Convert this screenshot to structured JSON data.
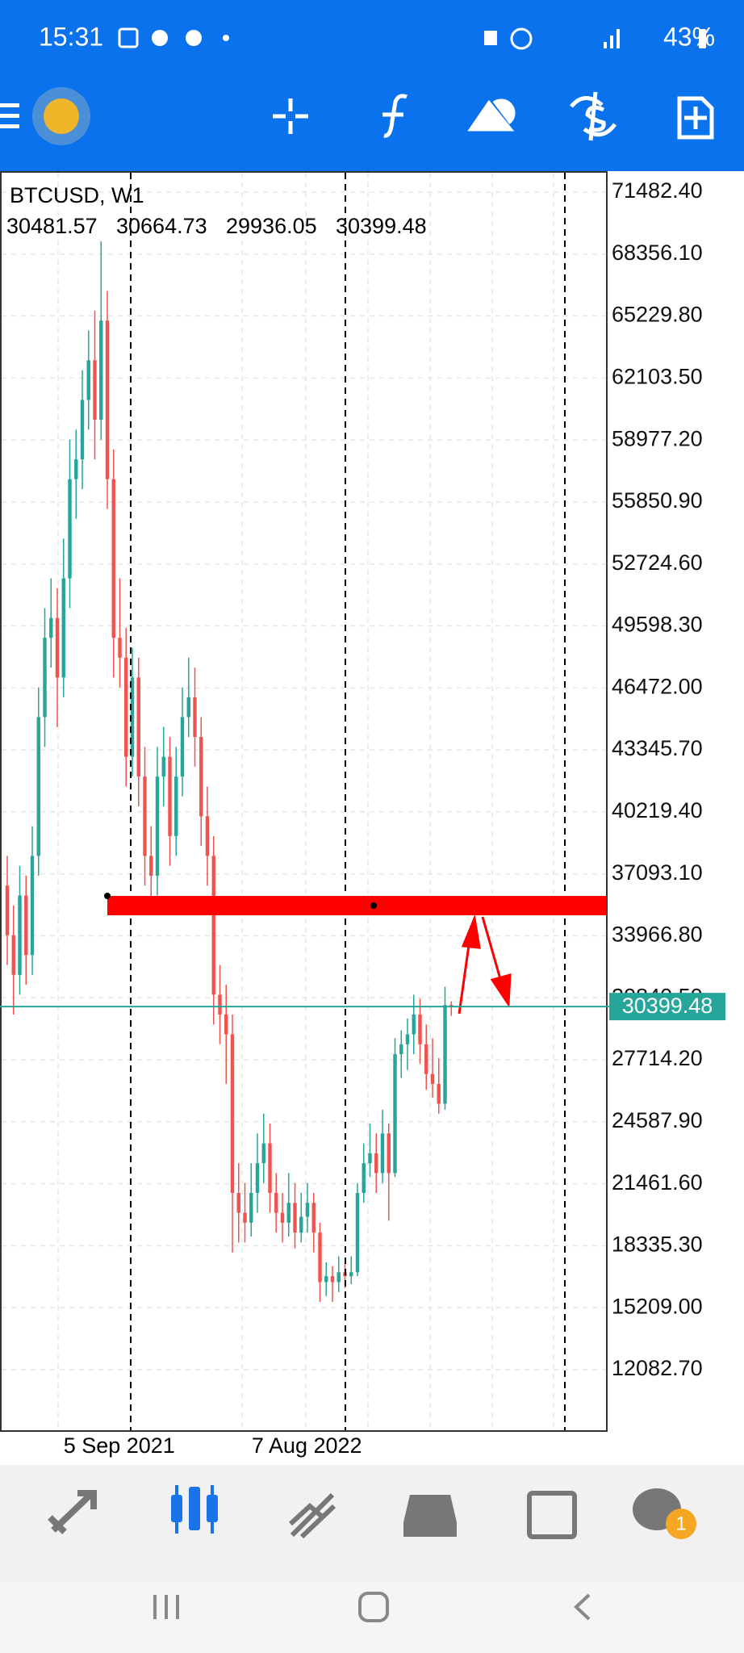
{
  "status_bar": {
    "time": "15:31",
    "battery": "43%"
  },
  "chart_data": {
    "type": "candlestick",
    "symbol": "BTCUSD, W1",
    "up_color": "#26a69a",
    "down_color": "#ef5350",
    "grid": true,
    "ylim": [
      8949,
      72540
    ],
    "yticks": [
      {
        "value": 71482.4,
        "label": "71482.40"
      },
      {
        "value": 68356.1,
        "label": "68356.10"
      },
      {
        "value": 65229.8,
        "label": "65229.80"
      },
      {
        "value": 62103.5,
        "label": "62103.50"
      },
      {
        "value": 58977.2,
        "label": "58977.20"
      },
      {
        "value": 55850.9,
        "label": "55850.90"
      },
      {
        "value": 52724.6,
        "label": "52724.60"
      },
      {
        "value": 49598.3,
        "label": "49598.30"
      },
      {
        "value": 46472,
        "label": "46472.00"
      },
      {
        "value": 43345.7,
        "label": "43345.70"
      },
      {
        "value": 40219.4,
        "label": "40219.40"
      },
      {
        "value": 37093.1,
        "label": "37093.10"
      },
      {
        "value": 33966.8,
        "label": "33966.80"
      },
      {
        "value": 30840.5,
        "label": "30840.50"
      },
      {
        "value": 27714.2,
        "label": "27714.20"
      },
      {
        "value": 24587.9,
        "label": "24587.90"
      },
      {
        "value": 21461.6,
        "label": "21461.60"
      },
      {
        "value": 18335.3,
        "label": "18335.30"
      },
      {
        "value": 15209,
        "label": "15209.00"
      },
      {
        "value": 12082.7,
        "label": "12082.70"
      }
    ],
    "categories": [
      null,
      null,
      null,
      null,
      null,
      null,
      null,
      null,
      null,
      null,
      null,
      null,
      null,
      null,
      null,
      null,
      null,
      "5 Sep 2021",
      null,
      null,
      null,
      null,
      null,
      null,
      null,
      null,
      null,
      null,
      null,
      null,
      null,
      null,
      null,
      null,
      null,
      null,
      null,
      null,
      null,
      null,
      null,
      null,
      null,
      null,
      null,
      null,
      null,
      "7 Aug 2022",
      null,
      null,
      null,
      null,
      null,
      null,
      null,
      null,
      null,
      null,
      null,
      null,
      null,
      null,
      null,
      null,
      null,
      null,
      null,
      null,
      null,
      null,
      null,
      null
    ],
    "candles": [
      [
        36500,
        38000,
        32500,
        34000
      ],
      [
        34000,
        35500,
        30000,
        32000
      ],
      [
        32000,
        37500,
        31000,
        36000
      ],
      [
        36000,
        37000,
        31500,
        33000
      ],
      [
        33000,
        39500,
        32000,
        38000
      ],
      [
        38000,
        46500,
        37000,
        45000
      ],
      [
        45000,
        50500,
        43500,
        49000
      ],
      [
        49000,
        52000,
        47500,
        50000
      ],
      [
        50000,
        51500,
        44500,
        47000
      ],
      [
        47000,
        54000,
        46000,
        52000
      ],
      [
        52000,
        59000,
        50500,
        57000
      ],
      [
        57000,
        59500,
        55000,
        58000
      ],
      [
        58000,
        62500,
        56500,
        61000
      ],
      [
        61000,
        64500,
        59500,
        63000
      ],
      [
        63000,
        65500,
        58000,
        60000
      ],
      [
        60000,
        69000,
        59000,
        65000
      ],
      [
        65000,
        66500,
        55500,
        57000
      ],
      [
        57000,
        58500,
        47000,
        49000
      ],
      [
        49000,
        52000,
        46500,
        48000
      ],
      [
        48000,
        49500,
        41500,
        43000
      ],
      [
        43000,
        48500,
        42000,
        47000
      ],
      [
        47000,
        48000,
        40500,
        42000
      ],
      [
        42000,
        43500,
        36500,
        38000
      ],
      [
        38000,
        39500,
        35500,
        37000
      ],
      [
        37000,
        43500,
        36000,
        42000
      ],
      [
        42000,
        44500,
        40500,
        43000
      ],
      [
        43000,
        44000,
        37500,
        39000
      ],
      [
        39000,
        43500,
        38000,
        42000
      ],
      [
        42000,
        46500,
        41000,
        45000
      ],
      [
        45000,
        48000,
        44000,
        46000
      ],
      [
        46000,
        47500,
        42500,
        44000
      ],
      [
        44000,
        45000,
        38500,
        40000
      ],
      [
        40000,
        41500,
        36500,
        38000
      ],
      [
        38000,
        39000,
        29500,
        31000
      ],
      [
        31000,
        32500,
        28500,
        30000
      ],
      [
        30000,
        31500,
        26500,
        29000
      ],
      [
        29000,
        30000,
        18000,
        21000
      ],
      [
        21000,
        22500,
        18500,
        20000
      ],
      [
        20000,
        21500,
        18500,
        19500
      ],
      [
        19500,
        22500,
        18800,
        21000
      ],
      [
        21000,
        24000,
        20000,
        22500
      ],
      [
        22500,
        25000,
        21500,
        23500
      ],
      [
        23500,
        24500,
        20000,
        21000
      ],
      [
        21000,
        22000,
        19000,
        20000
      ],
      [
        20000,
        21000,
        18500,
        19500
      ],
      [
        19500,
        22000,
        18800,
        20500
      ],
      [
        20500,
        21500,
        18200,
        19000
      ],
      [
        19000,
        21000,
        18500,
        19800
      ],
      [
        19800,
        21500,
        19000,
        20500
      ],
      [
        20500,
        21000,
        18000,
        19000
      ],
      [
        19000,
        19500,
        15500,
        16500
      ],
      [
        16500,
        17500,
        15800,
        16800
      ],
      [
        16800,
        17300,
        15500,
        16500
      ],
      [
        16500,
        17800,
        16000,
        17000
      ],
      [
        17000,
        17500,
        16200,
        16800
      ],
      [
        16800,
        17800,
        16400,
        17000
      ],
      [
        17000,
        21500,
        16800,
        21000
      ],
      [
        21000,
        23500,
        20500,
        22500
      ],
      [
        22500,
        24500,
        21800,
        23000
      ],
      [
        23000,
        24000,
        21000,
        22000
      ],
      [
        22000,
        25200,
        21500,
        24000
      ],
      [
        24000,
        24500,
        19600,
        22000
      ],
      [
        22000,
        28800,
        21800,
        28000
      ],
      [
        28000,
        29200,
        26800,
        28500
      ],
      [
        28500,
        29800,
        27200,
        29000
      ],
      [
        29000,
        31000,
        28000,
        30000
      ],
      [
        30000,
        30800,
        27500,
        28500
      ],
      [
        28500,
        29500,
        26200,
        27000
      ],
      [
        27000,
        28800,
        25800,
        26500
      ],
      [
        26500,
        27800,
        25000,
        25500
      ],
      [
        25500,
        31400,
        25200,
        30480
      ],
      [
        30481.57,
        30664.73,
        29936.05,
        30399.48
      ]
    ]
  },
  "bottom_nav": {
    "badge": "1"
  }
}
